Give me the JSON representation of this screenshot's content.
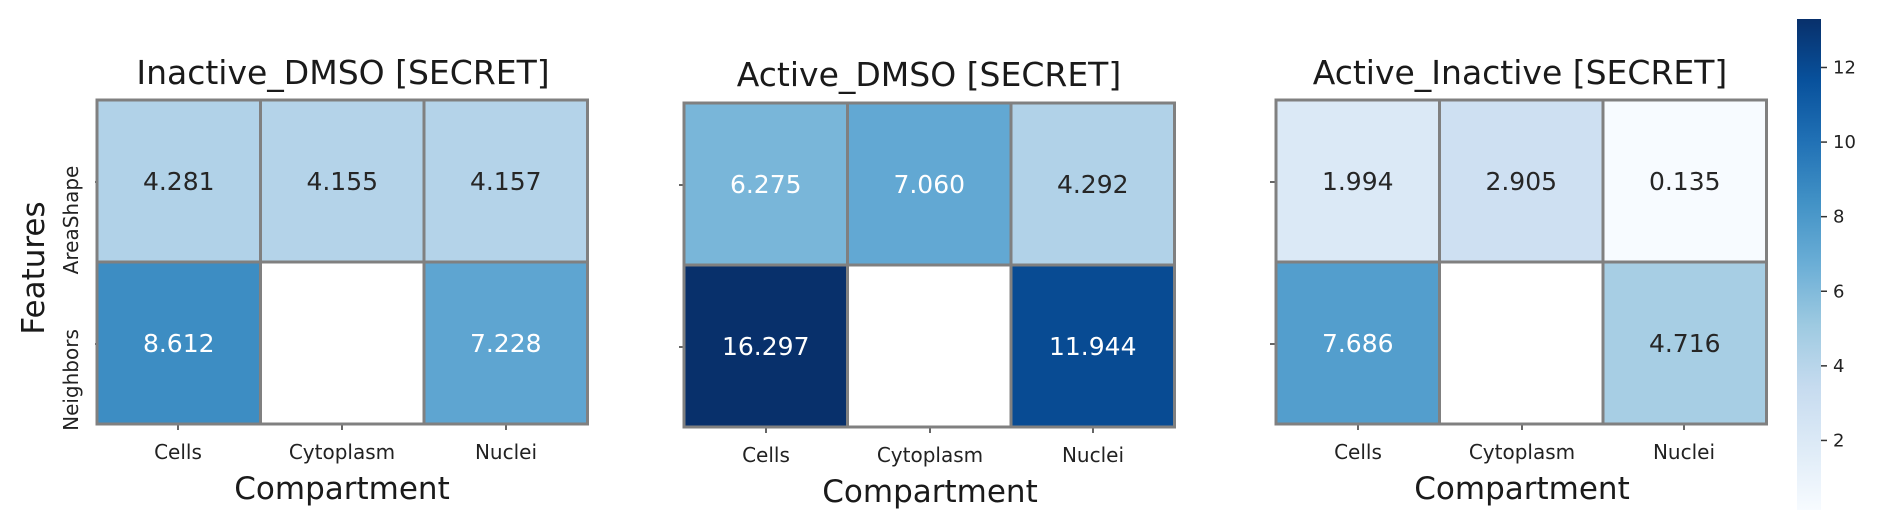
{
  "chart_data": [
    {
      "type": "heatmap",
      "title": "Inactive_DMSO [SECRET]",
      "xlabel": "Compartment",
      "ylabel": "Features",
      "categories": [
        "Cells",
        "Cytoplasm",
        "Nuclei"
      ],
      "rows": [
        "AreaShape",
        "Neighbors"
      ],
      "values": [
        [
          4.281,
          4.155,
          4.157
        ],
        [
          8.612,
          null,
          7.228
        ]
      ],
      "value_labels": [
        [
          "4.281",
          "4.155",
          "4.157"
        ],
        [
          "8.612",
          "",
          "7.228"
        ]
      ]
    },
    {
      "type": "heatmap",
      "title": "Active_DMSO [SECRET]",
      "xlabel": "Compartment",
      "ylabel": "",
      "categories": [
        "Cells",
        "Cytoplasm",
        "Nuclei"
      ],
      "rows": [
        "AreaShape",
        "Neighbors"
      ],
      "values": [
        [
          6.275,
          7.06,
          4.292
        ],
        [
          16.297,
          null,
          11.944
        ]
      ],
      "value_labels": [
        [
          "6.275",
          "7.060",
          "4.292"
        ],
        [
          "16.297",
          "",
          "11.944"
        ]
      ]
    },
    {
      "type": "heatmap",
      "title": "Active_Inactive [SECRET]",
      "xlabel": "Compartment",
      "ylabel": "",
      "categories": [
        "Cells",
        "Cytoplasm",
        "Nuclei"
      ],
      "rows": [
        "AreaShape",
        "Neighbors"
      ],
      "values": [
        [
          1.994,
          2.905,
          0.135
        ],
        [
          7.686,
          null,
          4.716
        ]
      ],
      "value_labels": [
        [
          "1.994",
          "2.905",
          "0.135"
        ],
        [
          "7.686",
          "",
          "4.716"
        ]
      ]
    }
  ],
  "colorbar": {
    "colormap": "Blues",
    "range": [
      0.135,
      13.3
    ],
    "ticks": [
      2,
      4,
      6,
      8,
      10,
      12
    ],
    "tick_labels": [
      "2",
      "4",
      "6",
      "8",
      "10",
      "12"
    ]
  },
  "colors": {
    "cell_border": "#808080",
    "missing_cell": "#ffffff",
    "light_text": "#ffffff",
    "dark_text": "#262626"
  }
}
